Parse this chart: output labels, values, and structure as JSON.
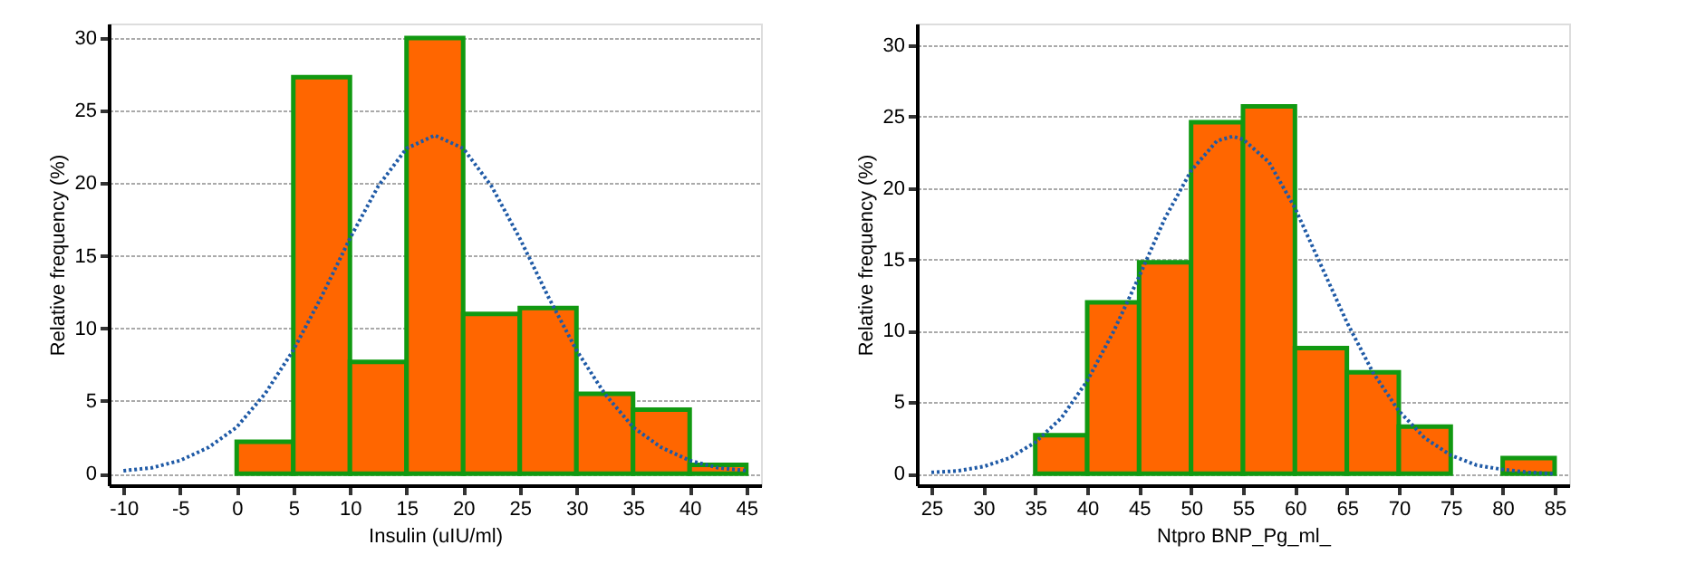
{
  "chart_data": [
    {
      "type": "histogram",
      "xlabel": "Insulin (uIU/ml)",
      "ylabel": "Relative frequency (%)",
      "xlim": [
        -11.3,
        46.3
      ],
      "ylim": [
        -0.8,
        31
      ],
      "xticks": [
        -10,
        -5,
        0,
        5,
        10,
        15,
        20,
        25,
        30,
        35,
        40,
        45
      ],
      "yticks": [
        0,
        5,
        10,
        15,
        20,
        25,
        30
      ],
      "grid": "y",
      "series": [
        {
          "color": "#ff6600",
          "bins": [
            0,
            5,
            10,
            15,
            20,
            25,
            30,
            35,
            40,
            45
          ],
          "values": [
            2.2,
            27.3,
            7.7,
            30.0,
            11.0,
            11.4,
            5.5,
            4.4,
            0.6
          ]
        },
        {
          "type": "line",
          "color": "#1f5aa6",
          "line_style": "dotted",
          "x": [
            -10,
            -7.5,
            -5,
            -2.5,
            0,
            2.5,
            5,
            7.5,
            10,
            12.5,
            15,
            17.5,
            20,
            22.5,
            25,
            27.5,
            30,
            32.5,
            35,
            37.5,
            40,
            42.5,
            45
          ],
          "values": [
            0.2,
            0.4,
            0.9,
            1.8,
            3.2,
            5.5,
            8.5,
            12.2,
            16.2,
            19.8,
            22.4,
            23.3,
            22.4,
            19.8,
            16.2,
            12.2,
            8.5,
            5.5,
            3.2,
            1.8,
            0.9,
            0.4,
            0.2
          ]
        }
      ]
    },
    {
      "type": "histogram",
      "xlabel": "Ntpro BNP_Pg_ml_",
      "ylabel": "Relative frequency (%)",
      "xlim": [
        23.6,
        86.4
      ],
      "ylim": [
        -0.8,
        31.5
      ],
      "xticks": [
        25,
        30,
        35,
        40,
        45,
        50,
        55,
        60,
        65,
        70,
        75,
        80,
        85
      ],
      "yticks": [
        0,
        5,
        10,
        15,
        20,
        25,
        30
      ],
      "grid": "y",
      "series": [
        {
          "color": "#ff6600",
          "bins": [
            35,
            40,
            45,
            50,
            55,
            60,
            65,
            70,
            75,
            80,
            85
          ],
          "values": [
            2.7,
            12.0,
            14.8,
            24.6,
            25.7,
            8.8,
            7.1,
            3.3,
            0,
            1.1
          ]
        },
        {
          "type": "line",
          "color": "#1f5aa6",
          "line_style": "dotted",
          "x": [
            25,
            27.5,
            30,
            32.5,
            35,
            37.5,
            40,
            42.5,
            45,
            47.5,
            50,
            52.5,
            54,
            55,
            57.5,
            60,
            62.5,
            65,
            67.5,
            70,
            72.5,
            75,
            77.5,
            80,
            82.5,
            85
          ],
          "values": [
            0.1,
            0.2,
            0.5,
            1.1,
            2.2,
            3.9,
            6.5,
            9.9,
            13.8,
            17.9,
            21.2,
            23.3,
            23.6,
            23.4,
            21.8,
            18.6,
            14.6,
            10.6,
            7.1,
            4.4,
            2.5,
            1.3,
            0.6,
            0.3,
            0.1,
            0.0
          ]
        }
      ]
    }
  ]
}
